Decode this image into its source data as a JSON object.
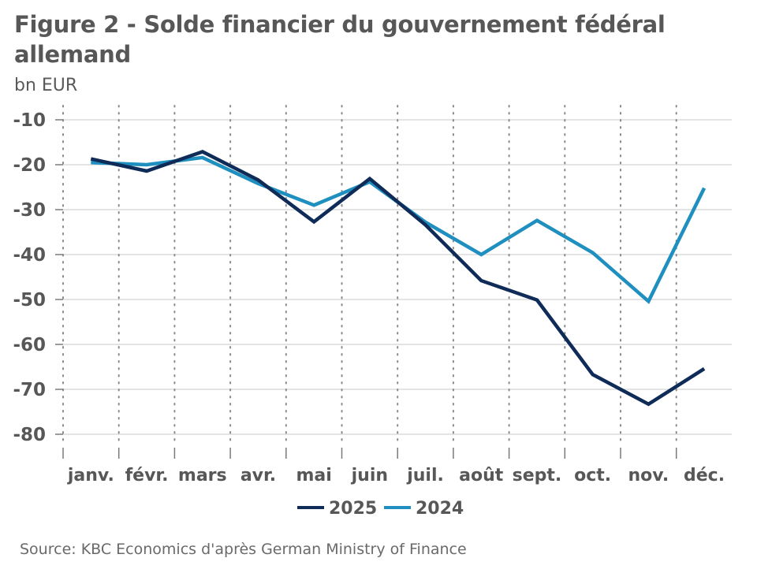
{
  "title": "Figure 2 - Solde financier du gouvernement fédéral allemand",
  "unit": "bn EUR",
  "source": "Source: KBC Economics d'après German Ministry of Finance",
  "chart_data": {
    "type": "line",
    "title": "Figure 2 - Solde financier du gouvernement fédéral allemand",
    "xlabel": "",
    "ylabel": "bn EUR",
    "ylim": [
      -80,
      -10
    ],
    "yticks": [
      -10,
      -20,
      -30,
      -40,
      -50,
      -60,
      -70,
      -80
    ],
    "grid": "horizontal",
    "legend_position": "bottom-center",
    "categories": [
      "janv.",
      "févr.",
      "mars",
      "avr.",
      "mai",
      "juin",
      "juil.",
      "août",
      "sept.",
      "oct.",
      "nov.",
      "déc."
    ],
    "series": [
      {
        "name": "2025",
        "color": "#0f2b57",
        "values": [
          -18.7,
          -21.4,
          -17.1,
          -23.4,
          -32.7,
          -23.1,
          -33.4,
          -45.8,
          -50.1,
          -66.7,
          -73.3,
          -65.4
        ]
      },
      {
        "name": "2024",
        "color": "#1f8fbf",
        "values": [
          -19.5,
          -20.0,
          -18.4,
          -24.2,
          -29.0,
          -23.8,
          -32.8,
          -40.0,
          -32.4,
          -39.6,
          -50.4,
          -25.2
        ]
      }
    ]
  }
}
